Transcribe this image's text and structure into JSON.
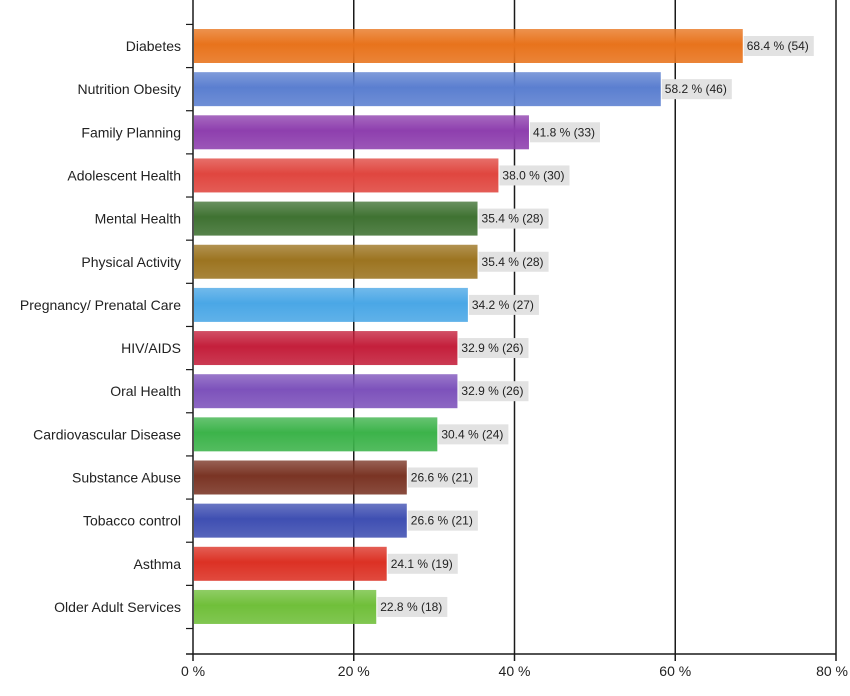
{
  "chart_data": {
    "type": "bar",
    "orientation": "horizontal",
    "categories": [
      "Diabetes",
      "Nutrition Obesity",
      "Family Planning",
      "Adolescent Health",
      "Mental Health",
      "Physical Activity",
      "Pregnancy/ Prenatal Care",
      "HIV/AIDS",
      "Oral Health",
      "Cardiovascular Disease",
      "Substance Abuse",
      "Tobacco control",
      "Asthma",
      "Older Adult Services"
    ],
    "values": [
      68.4,
      58.2,
      41.8,
      38.0,
      35.4,
      35.4,
      34.2,
      32.9,
      32.9,
      30.4,
      26.6,
      26.6,
      24.1,
      22.8
    ],
    "counts": [
      54,
      46,
      33,
      30,
      28,
      28,
      27,
      26,
      26,
      24,
      21,
      21,
      19,
      18
    ],
    "data_labels": [
      "68.4 % (54)",
      "58.2 % (46)",
      "41.8 % (33)",
      "38.0 % (30)",
      "35.4 % (28)",
      "35.4 % (28)",
      "34.2 % (27)",
      "32.9 % (26)",
      "32.9 % (26)",
      "30.4 % (24)",
      "26.6 % (21)",
      "26.6 % (21)",
      "24.1 % (19)",
      "22.8 % (18)"
    ],
    "colors": [
      "#e8731c",
      "#5b7fd0",
      "#8e3fae",
      "#e0463f",
      "#3f7232",
      "#9c7420",
      "#4aa7e6",
      "#c41f3b",
      "#7d52bb",
      "#3cb34a",
      "#7a3424",
      "#3f4fb2",
      "#dc3124",
      "#70bf3a"
    ],
    "xlim": [
      0,
      80
    ],
    "x_ticks": [
      0,
      20,
      40,
      60,
      80
    ],
    "x_tick_labels": [
      "0 %",
      "20 %",
      "40 %",
      "60 %",
      "80 %"
    ],
    "grid": "vertical",
    "label_background": "#e2e2e2",
    "title": "",
    "xlabel": "",
    "ylabel": ""
  }
}
